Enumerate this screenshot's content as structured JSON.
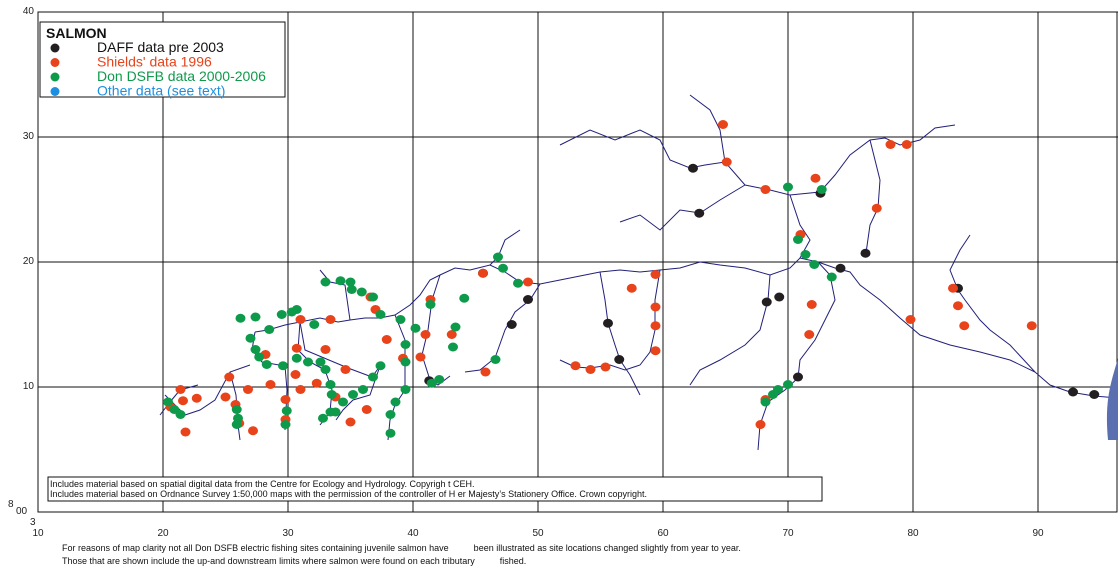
{
  "chart_data": {
    "type": "scatter",
    "legend_title": "SALMON",
    "xlim": [
      10,
      96.4
    ],
    "ylim": [
      0,
      40
    ],
    "xticks": [
      10,
      20,
      30,
      40,
      50,
      60,
      70,
      80,
      90
    ],
    "yticks": [
      10,
      20,
      30,
      40
    ],
    "corner_labels": [
      "3",
      "8",
      "00"
    ],
    "series": [
      {
        "name": "DAFF data pre 2003",
        "color": "#231f20",
        "x": [
          62.4,
          62.9,
          72.6,
          76.2,
          74.2,
          68.3,
          69.3,
          83.6,
          49.2,
          47.9,
          45.6,
          55.6,
          56.5,
          70.8,
          41.3,
          92.8,
          94.5
        ],
        "y": [
          27.5,
          23.9,
          25.5,
          20.7,
          19.5,
          16.8,
          17.2,
          17.9,
          17.0,
          15.0,
          19.1,
          15.1,
          12.2,
          10.8,
          10.5,
          9.6,
          9.4
        ]
      },
      {
        "name": "Shields' data 1996",
        "color": "#e8431a",
        "x": [
          21.4,
          21.6,
          22.7,
          20.6,
          21.8,
          25.3,
          25.0,
          25.8,
          26.1,
          26.8,
          27.2,
          28.6,
          29.8,
          29.8,
          28.2,
          31.0,
          30.7,
          30.6,
          31.0,
          33.4,
          33.0,
          32.3,
          33.8,
          35.0,
          36.3,
          34.6,
          36.6,
          37.0,
          37.9,
          39.2,
          40.6,
          41.0,
          43.1,
          41.4,
          45.6,
          45.8,
          49.2,
          53.0,
          54.2,
          55.4,
          57.5,
          59.4,
          59.4,
          59.4,
          59.4,
          64.8,
          65.1,
          68.2,
          72.2,
          71.0,
          71.9,
          71.7,
          77.1,
          78.2,
          79.5,
          83.2,
          83.6,
          84.1,
          79.8,
          89.5,
          67.8,
          68.2
        ],
        "y": [
          9.8,
          8.9,
          9.1,
          8.4,
          6.4,
          10.8,
          9.2,
          8.6,
          7.1,
          9.8,
          6.5,
          10.2,
          9.0,
          7.4,
          12.6,
          15.4,
          13.1,
          11.0,
          9.8,
          15.4,
          13.0,
          10.3,
          9.2,
          7.2,
          8.2,
          11.4,
          17.2,
          16.2,
          13.8,
          12.3,
          12.4,
          14.2,
          14.2,
          17.0,
          19.1,
          11.2,
          18.4,
          11.7,
          11.4,
          11.6,
          17.9,
          12.9,
          14.9,
          16.4,
          19.0,
          31.0,
          28.0,
          25.8,
          26.7,
          22.2,
          16.6,
          14.2,
          24.3,
          29.4,
          29.4,
          17.9,
          16.5,
          14.9,
          15.4,
          14.9,
          7.0,
          9.0
        ]
      },
      {
        "name": "Don DSFB data 2000-2006",
        "color": "#0e9a4b",
        "x": [
          20.4,
          20.9,
          21.4,
          25.9,
          26.0,
          25.9,
          27.0,
          27.4,
          27.7,
          28.3,
          29.6,
          30.7,
          31.6,
          32.6,
          33.0,
          33.4,
          33.5,
          33.4,
          32.8,
          29.9,
          29.8,
          28.5,
          29.5,
          30.3,
          30.7,
          26.2,
          27.4,
          32.1,
          33.0,
          34.2,
          35.0,
          35.1,
          35.9,
          36.8,
          37.4,
          39.0,
          40.2,
          39.4,
          39.4,
          42.1,
          41.5,
          39.4,
          38.6,
          38.2,
          38.2,
          43.4,
          43.2,
          44.1,
          41.4,
          46.8,
          47.2,
          48.4,
          46.6,
          70.0,
          72.7,
          70.8,
          71.4,
          72.1,
          73.5,
          70.0,
          69.2,
          68.8,
          68.2,
          34.4,
          35.2,
          36.0,
          36.8,
          37.4,
          33.8
        ],
        "y": [
          8.8,
          8.2,
          7.8,
          8.2,
          7.5,
          7.0,
          13.9,
          13.0,
          12.4,
          11.8,
          11.7,
          12.3,
          12.0,
          12.0,
          11.4,
          10.2,
          9.4,
          8.0,
          7.5,
          8.1,
          7.0,
          14.6,
          15.8,
          16.0,
          16.2,
          15.5,
          15.6,
          15.0,
          18.4,
          18.5,
          18.4,
          17.8,
          17.6,
          17.2,
          15.8,
          15.4,
          14.7,
          13.4,
          12.0,
          10.6,
          10.3,
          9.8,
          8.8,
          7.8,
          6.3,
          14.8,
          13.2,
          17.1,
          16.6,
          20.4,
          19.5,
          18.3,
          12.2,
          26.0,
          25.8,
          21.8,
          20.6,
          19.8,
          18.8,
          10.2,
          9.8,
          9.4,
          8.8,
          8.8,
          9.4,
          9.8,
          10.8,
          11.7,
          8.0
        ]
      },
      {
        "name": "Other data (see text)",
        "color": "#1d8fe0",
        "x": [],
        "y": []
      }
    ],
    "notes": [
      "Includes material based on spatial digital data from the Centre for Ecology and Hydrology. Copyrigh          t CEH.",
      "Includes material based on Ordnance Survey 1:50,000 maps with the permission of the controller of H          er Majesty’s Stationery Office. Crown copyright."
    ],
    "footnotes": [
      "For reasons of map clarity not all Don DSFB electric fishing sites containing juvenile salmon have          been illustrated as site locations changed slightly from year to year.",
      "Those that are shown include the up-and downstream limits where salmon were found on each tributary          fished."
    ]
  }
}
